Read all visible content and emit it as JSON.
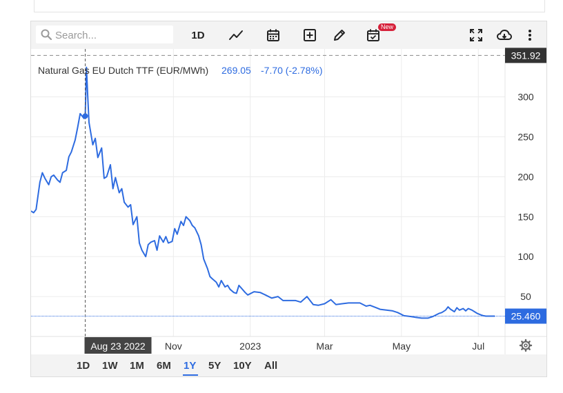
{
  "search": {
    "placeholder": "Search..."
  },
  "toolbar": {
    "interval_label": "1D",
    "new_badge": "New"
  },
  "legend": {
    "instrument": "Natural Gas EU Dutch TTF (EUR/MWh)",
    "last": "269.05",
    "change": "-7.70 (-2.78%)"
  },
  "crosshair": {
    "date_label": "Aug 23 2022",
    "price_label": "351.92"
  },
  "last_price_label": "25.460",
  "periods": [
    "1D",
    "1W",
    "1M",
    "6M",
    "1Y",
    "5Y",
    "10Y",
    "All"
  ],
  "active_period": "1Y",
  "colors": {
    "line": "#2d6be0",
    "accent": "#2d6be0",
    "crosshair_label_bg": "#333333",
    "badge": "#d6213a"
  },
  "chart_data": {
    "type": "line",
    "x_tick_labels": [
      "Nov",
      "2023",
      "Mar",
      "May",
      "Jul"
    ],
    "y_tick_labels": [
      "50",
      "100",
      "150",
      "200",
      "250",
      "300"
    ],
    "ylim": [
      0,
      360
    ],
    "grid": true,
    "series": [
      {
        "name": "",
        "x": [
          "2022-07-11",
          "2022-07-13",
          "2022-07-15",
          "2022-07-18",
          "2022-07-20",
          "2022-07-22",
          "2022-07-25",
          "2022-07-27",
          "2022-07-29",
          "2022-08-01",
          "2022-08-03",
          "2022-08-05",
          "2022-08-08",
          "2022-08-10",
          "2022-08-12",
          "2022-08-15",
          "2022-08-17",
          "2022-08-19",
          "2022-08-22",
          "2022-08-23",
          "2022-08-24",
          "2022-08-25",
          "2022-08-26",
          "2022-08-29",
          "2022-08-31",
          "2022-09-02",
          "2022-09-05",
          "2022-09-07",
          "2022-09-09",
          "2022-09-12",
          "2022-09-14",
          "2022-09-16",
          "2022-09-19",
          "2022-09-21",
          "2022-09-23",
          "2022-09-26",
          "2022-09-28",
          "2022-09-30",
          "2022-10-03",
          "2022-10-05",
          "2022-10-07",
          "2022-10-10",
          "2022-10-12",
          "2022-10-14",
          "2022-10-17",
          "2022-10-19",
          "2022-10-21",
          "2022-10-24",
          "2022-10-26",
          "2022-10-28",
          "2022-10-31",
          "2022-11-02",
          "2022-11-04",
          "2022-11-07",
          "2022-11-09",
          "2022-11-11",
          "2022-11-14",
          "2022-11-16",
          "2022-11-18",
          "2022-11-21",
          "2022-11-23",
          "2022-11-25",
          "2022-11-28",
          "2022-11-30",
          "2022-12-02",
          "2022-12-05",
          "2022-12-07",
          "2022-12-09",
          "2022-12-12",
          "2022-12-14",
          "2022-12-16",
          "2022-12-19",
          "2022-12-21",
          "2022-12-23",
          "2022-12-28",
          "2022-12-30",
          "2023-01-04",
          "2023-01-09",
          "2023-01-13",
          "2023-01-18",
          "2023-01-23",
          "2023-01-27",
          "2023-02-01",
          "2023-02-06",
          "2023-02-10",
          "2023-02-15",
          "2023-02-20",
          "2023-02-24",
          "2023-03-01",
          "2023-03-06",
          "2023-03-10",
          "2023-03-15",
          "2023-03-20",
          "2023-03-24",
          "2023-03-29",
          "2023-04-03",
          "2023-04-06",
          "2023-04-11",
          "2023-04-14",
          "2023-04-19",
          "2023-04-24",
          "2023-04-28",
          "2023-05-03",
          "2023-05-08",
          "2023-05-12",
          "2023-05-17",
          "2023-05-22",
          "2023-05-26",
          "2023-05-31",
          "2023-06-02",
          "2023-06-05",
          "2023-06-07",
          "2023-06-09",
          "2023-06-12",
          "2023-06-14",
          "2023-06-16",
          "2023-06-19",
          "2023-06-21",
          "2023-06-23",
          "2023-06-26",
          "2023-06-28",
          "2023-06-30",
          "2023-07-03",
          "2023-07-05",
          "2023-07-07",
          "2023-07-10",
          "2023-07-12",
          "2023-07-14"
        ],
        "values": [
          157,
          155,
          159,
          193,
          205,
          198,
          190,
          200,
          202,
          196,
          193,
          205,
          208,
          225,
          231,
          246,
          262,
          279,
          273,
          276,
          337,
          300,
          268,
          240,
          248,
          224,
          236,
          198,
          200,
          215,
          185,
          199,
          180,
          185,
          168,
          162,
          165,
          140,
          150,
          117,
          108,
          100,
          115,
          118,
          120,
          108,
          126,
          118,
          125,
          117,
          119,
          135,
          128,
          144,
          139,
          150,
          145,
          139,
          136,
          126,
          115,
          97,
          85,
          75,
          72,
          68,
          62,
          70,
          62,
          64,
          59,
          55,
          54,
          64,
          55,
          52,
          56,
          55,
          52,
          48,
          50,
          45,
          45,
          45,
          43,
          50,
          40,
          39,
          41,
          46,
          40,
          41,
          42,
          42,
          42,
          38,
          39,
          36,
          34,
          33,
          32,
          30,
          26,
          25,
          24,
          23,
          23,
          25,
          29,
          30,
          33,
          37,
          34,
          31,
          36,
          33,
          35,
          32,
          35,
          33,
          31,
          29,
          27,
          26,
          25.5,
          25.5,
          25.46,
          25.46
        ]
      }
    ]
  }
}
